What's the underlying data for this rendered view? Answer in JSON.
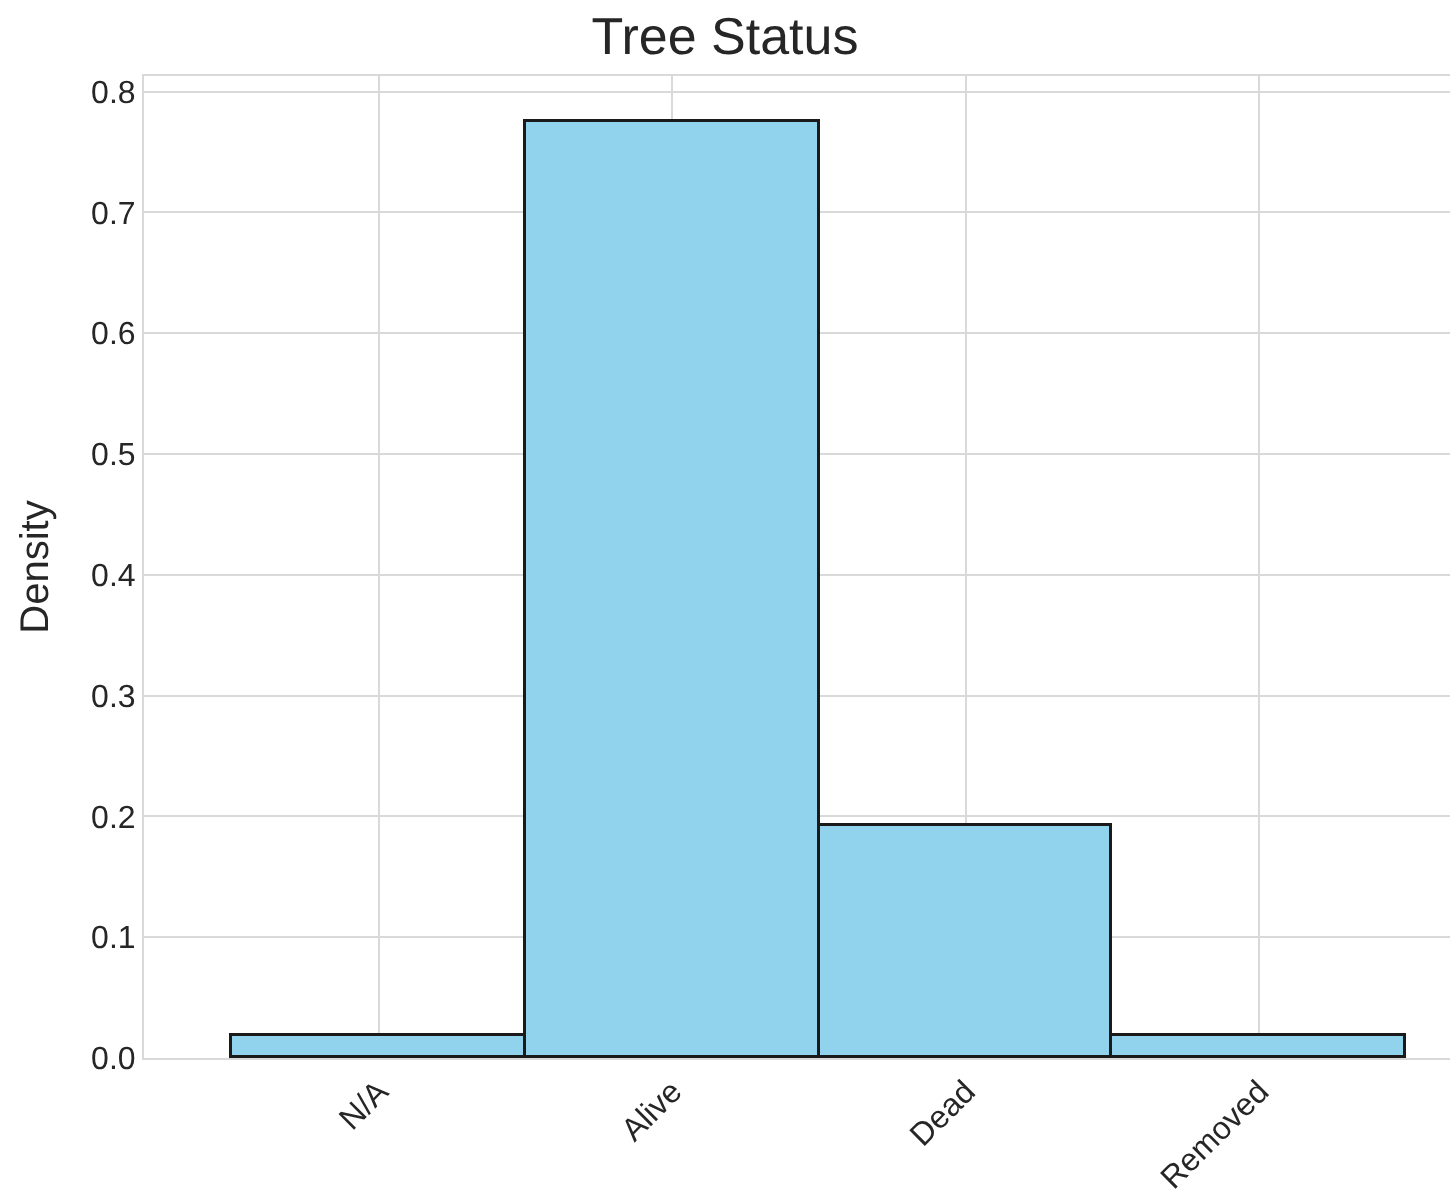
{
  "chart_data": {
    "type": "bar",
    "title": "Tree Status",
    "ylabel": "Density",
    "categories": [
      "N/A",
      "Alive",
      "Dead",
      "Removed"
    ],
    "values": [
      0.018,
      0.775,
      0.192,
      0.018
    ],
    "color": "#91d2ec",
    "ylim": [
      0,
      0.813
    ],
    "yticks": [
      {
        "value": 0,
        "label": "0.0"
      },
      0.1,
      0.2,
      0.3,
      0.4,
      0.5,
      0.6,
      0.7,
      0.8
    ],
    "grid": true,
    "legend": false
  }
}
